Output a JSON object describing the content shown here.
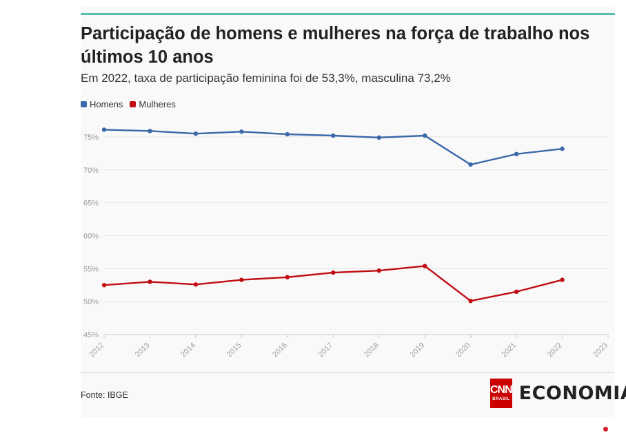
{
  "header": {
    "title": "Participação de homens e mulheres na força de trabalho nos últimos 10 anos",
    "subtitle": "Em 2022, taxa de participação feminina foi de 53,3%, masculina 73,2%"
  },
  "legend": [
    {
      "label": "Homens",
      "color": "#3a68a8"
    },
    {
      "label": "Mulheres",
      "color": "#c00d12"
    }
  ],
  "footer": {
    "source": "Fonte: IBGE",
    "logo_box_text": "CNN",
    "logo_box_subtext": "BRASIL",
    "logo_text": "ECONOMIA"
  },
  "chart_data": {
    "type": "line",
    "title": "Participação de homens e mulheres na força de trabalho nos últimos 10 anos",
    "subtitle": "Em 2022, taxa de participação feminina foi de 53,3%, masculina 73,2%",
    "x": [
      2012,
      2013,
      2014,
      2015,
      2016,
      2017,
      2018,
      2019,
      2020,
      2021,
      2022
    ],
    "x_ticks": [
      "2012",
      "2013",
      "2014",
      "2015",
      "2016",
      "2017",
      "2018",
      "2019",
      "2020",
      "2021",
      "2022",
      "2023"
    ],
    "xlim": [
      2012,
      2023
    ],
    "ylim": [
      45,
      77.5
    ],
    "y_ticks": [
      45,
      50,
      55,
      60,
      65,
      70,
      75
    ],
    "y_tick_labels": [
      "45%",
      "50%",
      "55%",
      "60%",
      "65%",
      "70%",
      "75%"
    ],
    "grid": true,
    "legend_position": "top-left",
    "series": [
      {
        "name": "Homens",
        "color": "#3a68a8",
        "values": [
          76.1,
          75.9,
          75.5,
          75.8,
          75.4,
          75.2,
          74.9,
          75.2,
          70.8,
          72.4,
          73.2
        ]
      },
      {
        "name": "Mulheres",
        "color": "#c00d12",
        "values": [
          52.5,
          53.0,
          52.6,
          53.3,
          53.7,
          54.4,
          54.7,
          55.4,
          50.1,
          51.5,
          53.3
        ]
      }
    ],
    "source": "Fonte: IBGE"
  }
}
